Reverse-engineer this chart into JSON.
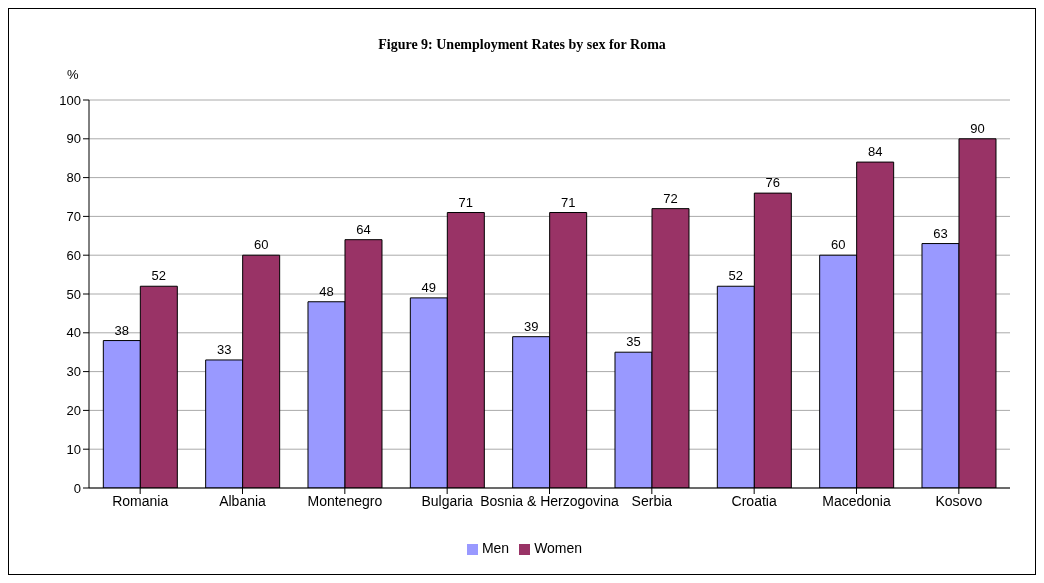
{
  "chart_data": {
    "type": "bar",
    "title": "Figure 9: Unemployment Rates by sex for Roma",
    "ylabel": "%",
    "categories": [
      "Romania",
      "Albania",
      "Montenegro",
      "Bulgaria",
      "Bosnia & Herzogovina",
      "Serbia",
      "Croatia",
      "Macedonia",
      "Kosovo"
    ],
    "series": [
      {
        "name": "Men",
        "color": "#9999ff",
        "values": [
          38,
          33,
          48,
          49,
          39,
          35,
          52,
          60,
          63
        ]
      },
      {
        "name": "Women",
        "color": "#993366",
        "values": [
          52,
          60,
          64,
          71,
          71,
          72,
          76,
          84,
          90
        ]
      }
    ],
    "ylim": [
      0,
      100
    ],
    "yticks": [
      0,
      10,
      20,
      30,
      40,
      50,
      60,
      70,
      80,
      90,
      100
    ],
    "grid": "y",
    "legend": "bottom",
    "data_labels": true
  }
}
